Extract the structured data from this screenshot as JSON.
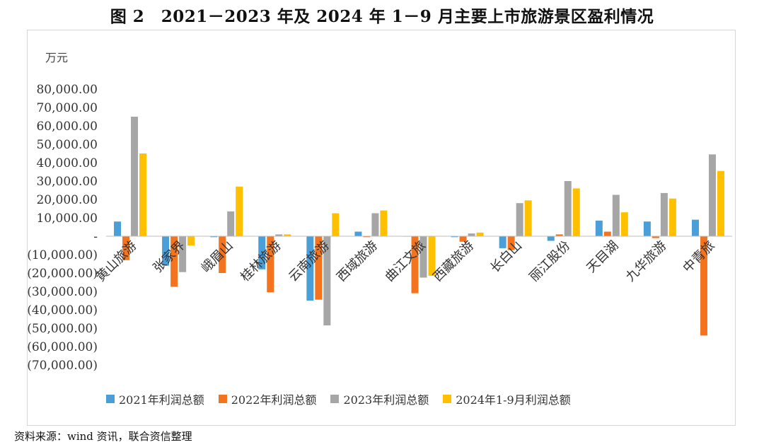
{
  "title": "图 2　2021－2023 年及 2024 年 1－9 月主要上市旅游景区盈利情况",
  "source": "资料来源：wind 资讯，联合资信整理",
  "chart_data": {
    "type": "bar",
    "unit_label": "万元",
    "categories": [
      "黄山旅游",
      "张家界",
      "峨眉山",
      "桂林旅游",
      "云南旅游",
      "西域旅游",
      "曲江文旅",
      "西藏旅游",
      "长白山",
      "丽江股份",
      "天目湖",
      "九华旅游",
      "中青旅"
    ],
    "series": [
      {
        "name": "2021年利润总额",
        "color": "#4a9fd9",
        "values": [
          8000,
          -16000,
          -500,
          -18000,
          -35000,
          2500,
          0,
          -500,
          -6500,
          -2500,
          8500,
          8000,
          9000
        ]
      },
      {
        "name": "2022年利润总额",
        "color": "#f4731f",
        "values": [
          -13000,
          -27500,
          -20000,
          -30500,
          -34500,
          -500,
          -31000,
          -3000,
          -7500,
          1000,
          2500,
          -1000,
          -54000
        ]
      },
      {
        "name": "2023年利润总额",
        "color": "#a6a6a6",
        "values": [
          65000,
          -19500,
          13500,
          1000,
          -48500,
          12500,
          -22500,
          1500,
          18000,
          30000,
          22500,
          23500,
          44500
        ]
      },
      {
        "name": "2024年1-9月利润总额",
        "color": "#ffc000",
        "values": [
          45000,
          -5000,
          27000,
          1000,
          12500,
          14000,
          -21500,
          2000,
          19500,
          26000,
          13000,
          20500,
          35500
        ]
      }
    ],
    "y_ticks": [
      "80,000.00",
      "70,000.00",
      "60,000.00",
      "50,000.00",
      "40,000.00",
      "30,000.00",
      "20,000.00",
      "10,000.00",
      "-",
      "(10,000.00)",
      "(20,000.00)",
      "(30,000.00)",
      "(40,000.00)",
      "(50,000.00)",
      "(60,000.00)",
      "(70,000.00)"
    ],
    "ylim": [
      -70000,
      80000
    ],
    "grid": false,
    "legend": "bottom"
  }
}
